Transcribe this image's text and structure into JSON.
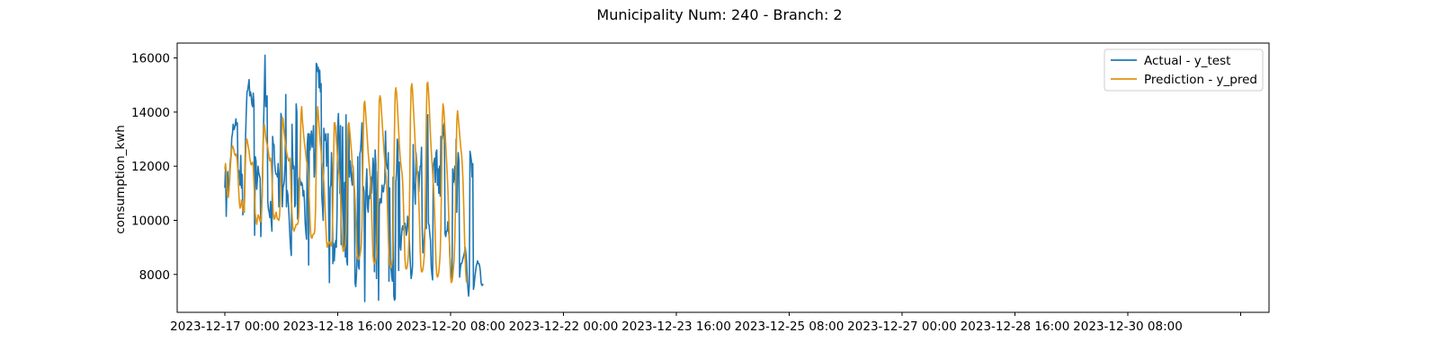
{
  "chart_data": {
    "type": "line",
    "title": "Municipality Num: 240 - Branch: 2",
    "xlabel": "",
    "ylabel": "consumption_kwh",
    "ylim": [
      6600,
      16550
    ],
    "yticks": [
      8000,
      10000,
      12000,
      14000,
      16000
    ],
    "ytick_labels": [
      "8000",
      "10000",
      "12000",
      "14000",
      "16000"
    ],
    "xtick_labels": [
      "2023-12-17 00:00",
      "2023-12-18 16:00",
      "2023-12-20 08:00",
      "2023-12-22 00:00",
      "2023-12-23 16:00",
      "2023-12-25 08:00",
      "2023-12-27 00:00",
      "2023-12-28 16:00",
      "2023-12-30 08:00",
      ""
    ],
    "x_start": "2023-12-17 00:00",
    "x_step": "1H",
    "grid": false,
    "legend_position": "upper right",
    "series": [
      {
        "name": "Actual - y_test",
        "color": "#1f77b4",
        "values": [
          11200,
          12000,
          10150,
          11200,
          11800,
          10900,
          11200,
          11800,
          12200,
          12400,
          13050,
          13200,
          13550,
          13350,
          13400,
          13550,
          13750,
          13500,
          13600,
          11800,
          11850,
          11700,
          11300,
          12400,
          11200,
          11700,
          10200,
          10500,
          10300,
          11800,
          13150,
          14050,
          14750,
          14800,
          15000,
          15200,
          14600,
          14750,
          14600,
          14300,
          14200,
          14700,
          14300,
          9450,
          12350,
          12200,
          11150,
          11500,
          12000,
          11750,
          11650,
          11550,
          9400,
          10500,
          11000,
          12500,
          13600,
          14800,
          16100,
          14200,
          14500,
          14600,
          10700,
          10400,
          10300,
          10100,
          10700,
          9950,
          9600,
          13100,
          12800,
          12800,
          12100,
          11800,
          11700,
          11700,
          11600,
          12100,
          10500,
          11600,
          12000,
          13950,
          13800,
          10500,
          11200,
          11300,
          11500,
          12100,
          14650,
          10500,
          11100,
          10950,
          10500,
          10000,
          9400,
          8950,
          8700,
          13550,
          12300,
          11900,
          12000,
          10500,
          10600,
          14300,
          14000,
          10050,
          10600,
          11500,
          11600,
          11450,
          11300,
          11400,
          11300,
          10900,
          11100,
          10700,
          9900,
          9550,
          9300,
          12800,
          13200,
          8350,
          13200,
          12600,
          13000,
          13300,
          12700,
          12950,
          13500,
          11600,
          11900,
          12700,
          15800,
          15750,
          15500,
          15650,
          14900,
          15550,
          14750,
          15050,
          10900,
          10500,
          10000,
          13400,
          12950,
          13050,
          13200,
          12000,
          12550,
          13200,
          10050,
          7700,
          11200,
          11300,
          12500,
          11700,
          8400,
          9150,
          8500,
          9000,
          9250,
          9000,
          10200,
          13450,
          13950,
          12900,
          11000,
          13500,
          9100,
          11200,
          13450,
          10400,
          9000,
          11400,
          8650,
          13900,
          8500,
          8350,
          13100,
          13600,
          11600,
          12200,
          11950,
          11500,
          11300,
          12000,
          11600,
          10900,
          7700,
          7550,
          7950,
          8700,
          12350,
          8300,
          8200,
          12450,
          12600,
          13050,
          13600,
          11100,
          11250,
          11050,
          7000,
          10300,
          11300,
          11900,
          10500,
          10300,
          10900,
          10800,
          11200,
          11600,
          11000,
          11550,
          12300,
          11950,
          8100,
          12600,
          12100,
          7850,
          10600,
          11800,
          7050,
          10500,
          10800,
          10650,
          10650,
          11300,
          11100,
          11050,
          11300,
          11400,
          13300,
          12100,
          12000,
          11900,
          12500,
          7750,
          11200,
          8350,
          8200,
          7900,
          7750,
          11600,
          7200,
          7050,
          7100,
          11400,
          11800,
          13000,
          12800,
          8150,
          12150,
          9100,
          8900,
          9400,
          9700,
          9800,
          9650,
          9700,
          9900,
          9750,
          9450,
          9600,
          10150,
          10000,
          9500,
          8850,
          8350,
          7850,
          8000,
          8300,
          12800,
          11400,
          11100,
          10600,
          12500,
          12200,
          11700,
          11800,
          11050,
          11600,
          12000,
          12000,
          12700,
          9700,
          8800,
          9000,
          9350,
          9700,
          9750,
          9700,
          13800,
          13900,
          9900,
          9800,
          9500,
          9250,
          8300,
          8000,
          7800,
          12000,
          12150,
          12300,
          11400,
          12500,
          12600,
          11300,
          11900,
          11000,
          12000,
          10900,
          13100,
          13100,
          13000,
          13150,
          13500,
          13600,
          9500,
          9400,
          9600,
          9600,
          9950,
          9600,
          9400,
          8650,
          8200,
          8000,
          7800,
          11900,
          11400,
          11550,
          12000,
          11300,
          13000,
          10300,
          11700,
          12500,
          12200,
          7900,
          8200,
          8400,
          8400,
          8500,
          8600,
          8700,
          8800,
          9000,
          8800,
          8500,
          7900,
          7500,
          7200,
          7600,
          12550,
          12400,
          12200,
          11600,
          12100,
          7450,
          7600,
          7900,
          8100,
          8300,
          8400,
          8500,
          8400,
          8400,
          8300,
          8100,
          7700,
          7600,
          7600,
          7650
        ]
      },
      {
        "name": "Prediction - y_pred",
        "color": "#e0930f",
        "values": [
          11900,
          12100,
          11700,
          11200,
          10900,
          10850,
          11100,
          11500,
          12000,
          12350,
          12650,
          12750,
          12700,
          12600,
          12450,
          12400,
          12450,
          12350,
          12150,
          11700,
          11100,
          10650,
          10450,
          10500,
          10750,
          10700,
          10400,
          10300,
          10350,
          11300,
          12400,
          12950,
          13000,
          12850,
          12700,
          12550,
          12300,
          12150,
          12050,
          12100,
          12150,
          12000,
          11400,
          10800,
          10250,
          9950,
          9850,
          10050,
          10200,
          10150,
          10050,
          9950,
          9950,
          10250,
          11000,
          12200,
          13300,
          13550,
          13350,
          13100,
          12900,
          12800,
          12700,
          12500,
          12300,
          12200,
          12300,
          12100,
          11600,
          10800,
          10250,
          10050,
          10050,
          10200,
          10300,
          10150,
          10050,
          10050,
          10000,
          10150,
          10700,
          11700,
          12900,
          13800,
          13750,
          13400,
          13150,
          12950,
          12750,
          12550,
          12400,
          12300,
          12200,
          12200,
          12300,
          11600,
          10800,
          10250,
          9800,
          9650,
          9600,
          9700,
          9750,
          9850,
          9850,
          9850,
          9950,
          10300,
          11400,
          12700,
          13900,
          14200,
          13700,
          13400,
          13100,
          12850,
          12650,
          12400,
          12200,
          12050,
          11800,
          11400,
          10750,
          10000,
          9500,
          9350,
          9350,
          9450,
          9500,
          9500,
          9650,
          10400,
          12100,
          13650,
          14200,
          13900,
          13500,
          13100,
          12800,
          12550,
          12150,
          11950,
          11750,
          11400,
          10900,
          10300,
          9700,
          9200,
          9000,
          9100,
          9200,
          9150,
          9200,
          9150,
          9050,
          9300,
          10600,
          12200,
          13600,
          13600,
          13400,
          12900,
          12600,
          12200,
          11900,
          11700,
          11400,
          10900,
          10200,
          9500,
          9000,
          8850,
          8900,
          9000,
          9100,
          9500,
          10600,
          12300,
          13500,
          13600,
          13400,
          13100,
          12800,
          12500,
          12100,
          11800,
          11500,
          11200,
          10800,
          10100,
          9300,
          8750,
          8600,
          8550,
          8600,
          8700,
          8850,
          9100,
          9750,
          11400,
          13200,
          14300,
          14400,
          14100,
          13700,
          13300,
          12900,
          12500,
          12200,
          11900,
          11600,
          11100,
          10300,
          9400,
          8700,
          8450,
          8400,
          8450,
          8550,
          8750,
          9200,
          10800,
          12900,
          14400,
          14600,
          14500,
          14100,
          13700,
          13300,
          12900,
          12500,
          12200,
          11900,
          11600,
          11100,
          10300,
          9400,
          8700,
          8350,
          8250,
          8300,
          8350,
          8600,
          9400,
          11400,
          13400,
          14700,
          14900,
          14700,
          14300,
          13800,
          13300,
          12800,
          12400,
          12100,
          11900,
          11700,
          11300,
          10500,
          9500,
          8600,
          8250,
          8200,
          8250,
          8400,
          8700,
          9400,
          11400,
          13800,
          14900,
          15050,
          14800,
          14300,
          13800,
          13300,
          12700,
          12300,
          12000,
          11700,
          11400,
          10800,
          10000,
          9000,
          8300,
          8100,
          8100,
          8200,
          8400,
          8700,
          9600,
          11600,
          13900,
          15050,
          15100,
          14800,
          14300,
          13700,
          13100,
          12600,
          12200,
          11800,
          11400,
          10900,
          10200,
          9200,
          8400,
          8000,
          7900,
          7950,
          8100,
          8400,
          8800,
          9800,
          11700,
          13700,
          14300,
          14150,
          13800,
          13300,
          12800,
          12300,
          11800,
          11200,
          10400,
          9500,
          8600,
          7900,
          7700,
          7750,
          7900,
          8200,
          8500,
          9200,
          10500,
          12400,
          13700,
          14050,
          13800,
          13500,
          13200,
          12900,
          12600,
          12400,
          12000,
          11400,
          10500,
          9500,
          8600,
          8000,
          7700
        ]
      }
    ]
  }
}
